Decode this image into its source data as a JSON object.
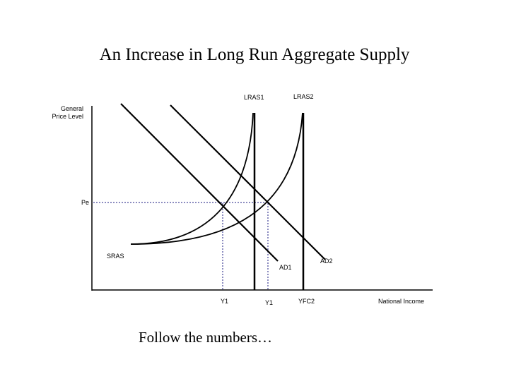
{
  "title": "An Increase in Long Run Aggregate Supply",
  "footer": "Follow the numbers…",
  "y_axis_label": [
    "General",
    "Price Level"
  ],
  "x_axis_label": "National Income",
  "labels": {
    "lras1": "LRAS1",
    "lras2": "LRAS2",
    "pe": "Pe",
    "sras": "SRAS",
    "ad1": "AD1",
    "ad2": "AD2",
    "y1_left": "Y1",
    "y1_right": "Y1",
    "yfc2": "YFC2"
  },
  "colors": {
    "curves": "#000000",
    "guides": "#1a1a80"
  }
}
